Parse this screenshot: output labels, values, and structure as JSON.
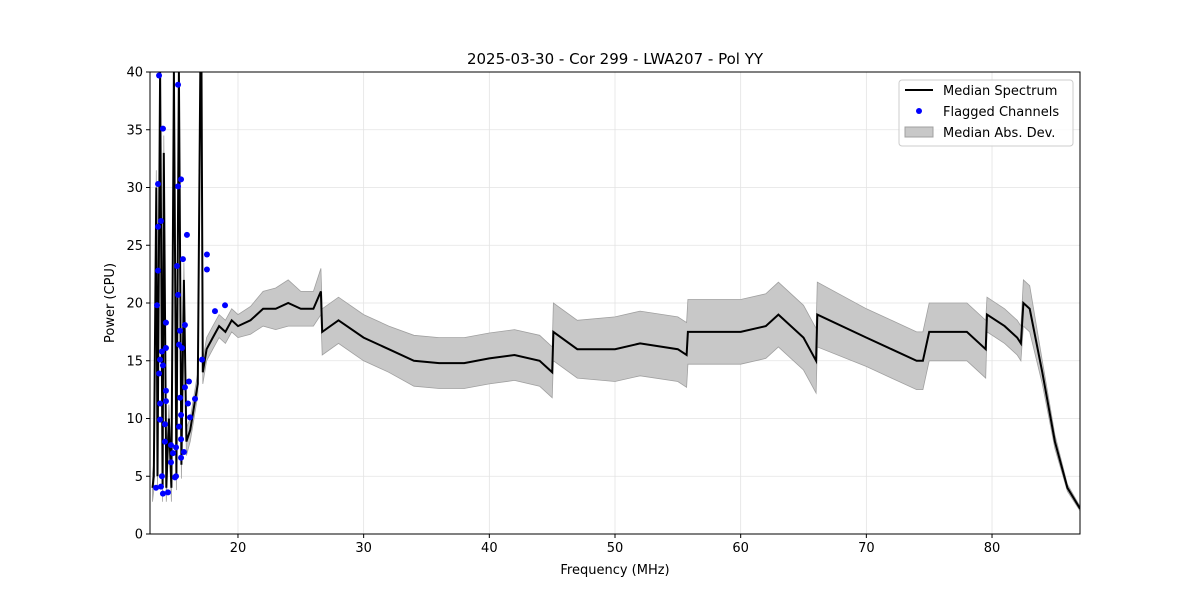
{
  "chart_data": {
    "type": "line",
    "title": "2025-03-30 - Cor 299 - LWA207 - Pol YY",
    "xlabel": "Frequency (MHz)",
    "ylabel": "Power (CPU)",
    "xlim": [
      13,
      87
    ],
    "ylim": [
      0,
      40
    ],
    "xticks": [
      20,
      30,
      40,
      50,
      60,
      70,
      80
    ],
    "yticks": [
      0,
      5,
      10,
      15,
      20,
      25,
      30,
      35,
      40
    ],
    "grid": true,
    "legend_position": "top-right",
    "legend": [
      "Median Spectrum",
      "Flagged Channels",
      "Median Abs. Dev."
    ],
    "colors": {
      "median": "#000000",
      "flagged": "#0000ff",
      "mad": "#c8c8c8",
      "mad_edge": "#a0a0a0"
    },
    "median_spectrum": {
      "freq": [
        13.2,
        13.3,
        13.5,
        13.6,
        13.8,
        14.0,
        14.1,
        14.3,
        14.5,
        14.7,
        14.9,
        15.1,
        15.3,
        15.5,
        15.7,
        15.9,
        16.2,
        16.5,
        16.8,
        17.0,
        17.1,
        17.2,
        17.5,
        18,
        18.5,
        19,
        19.5,
        20,
        21,
        22,
        23,
        24,
        25,
        26,
        26.6,
        26.7,
        28,
        30,
        32,
        34,
        36,
        38,
        40,
        42,
        44,
        45,
        45.1,
        47,
        50,
        52,
        55,
        55.7,
        55.8,
        60,
        62,
        63,
        65,
        66,
        66.1,
        70,
        72,
        74,
        74.5,
        75,
        78,
        79.5,
        79.6,
        81,
        82,
        82.3,
        82.5,
        83,
        84,
        85,
        86,
        87
      ],
      "power": [
        4,
        5,
        30,
        5,
        40,
        4,
        33,
        4,
        10,
        4,
        40,
        5,
        40,
        6,
        22,
        8,
        9,
        11,
        13,
        40,
        40,
        14,
        16,
        17,
        18,
        17.5,
        18.5,
        18,
        18.5,
        19.5,
        19.5,
        20,
        19.5,
        19.5,
        21,
        17.5,
        18.5,
        17,
        16,
        15,
        14.8,
        14.8,
        15.2,
        15.5,
        15,
        14,
        17.5,
        16,
        16,
        16.5,
        16,
        15.5,
        17.5,
        17.5,
        18,
        19,
        17,
        15,
        19,
        17,
        16,
        15,
        15,
        17.5,
        17.5,
        16,
        19,
        18,
        17,
        16.5,
        20,
        19.5,
        14,
        8,
        4,
        2.2
      ],
      "mad": [
        1.2,
        1.2,
        1.5,
        1.2,
        1.5,
        1.2,
        1.5,
        1.2,
        1.2,
        1.2,
        1.5,
        1.2,
        1.5,
        1.2,
        1.5,
        1.2,
        1,
        1,
        1,
        1.5,
        1.5,
        1,
        1,
        1,
        1,
        1,
        1,
        1,
        1.2,
        1.5,
        1.8,
        2,
        1.5,
        1.5,
        2,
        2,
        2,
        2,
        2,
        2.2,
        2.2,
        2.2,
        2.2,
        2.2,
        2.2,
        2.2,
        2.5,
        2.5,
        2.8,
        2.8,
        2.8,
        2.8,
        2.8,
        2.8,
        2.8,
        2.8,
        2.8,
        2.8,
        2.8,
        2.5,
        2.5,
        2.5,
        2.5,
        2.5,
        2.5,
        2.5,
        1.5,
        1.5,
        1.5,
        1.5,
        2,
        2,
        1,
        0.6,
        0.3,
        0.2
      ]
    },
    "flagged_channels": {
      "freq": [
        13.72,
        14.03,
        13.64,
        13.87,
        13.64,
        13.64,
        13.56,
        14.27,
        13.95,
        14.27,
        13.8,
        14.03,
        13.72,
        14.27,
        13.8,
        14.27,
        13.8,
        14.19,
        14.19,
        14.67,
        14.83,
        15.07,
        13.95,
        14.67,
        13.48,
        13.87,
        14.03,
        14.43,
        14.99,
        15.23,
        15.47,
        15.23,
        15.94,
        15.62,
        15.15,
        17.53,
        17.53,
        15.23,
        15.78,
        15.39,
        15.31,
        15.55,
        16.1,
        15.78,
        15.39,
        16.02,
        16.58,
        16.18,
        15.47,
        15.31,
        15.47,
        15.7,
        15.47,
        17.14,
        18.17,
        18.97,
        15.07
      ],
      "power": [
        39.7,
        35.1,
        30.3,
        27.1,
        26.6,
        22.8,
        19.8,
        18.3,
        15.8,
        16.1,
        15.1,
        14.6,
        13.9,
        12.4,
        11.3,
        11.5,
        9.9,
        9.5,
        8.0,
        7.7,
        7.0,
        7.5,
        5.0,
        6.2,
        4.0,
        4.1,
        3.5,
        3.6,
        4.9,
        38.9,
        30.7,
        30.1,
        25.9,
        23.8,
        23.2,
        24.2,
        22.9,
        20.7,
        18.1,
        17.6,
        16.4,
        16.1,
        13.2,
        12.7,
        11.8,
        11.3,
        11.7,
        10.1,
        10.3,
        9.3,
        8.2,
        7.1,
        6.6,
        15.1,
        19.3,
        19.8,
        5.0
      ]
    }
  }
}
